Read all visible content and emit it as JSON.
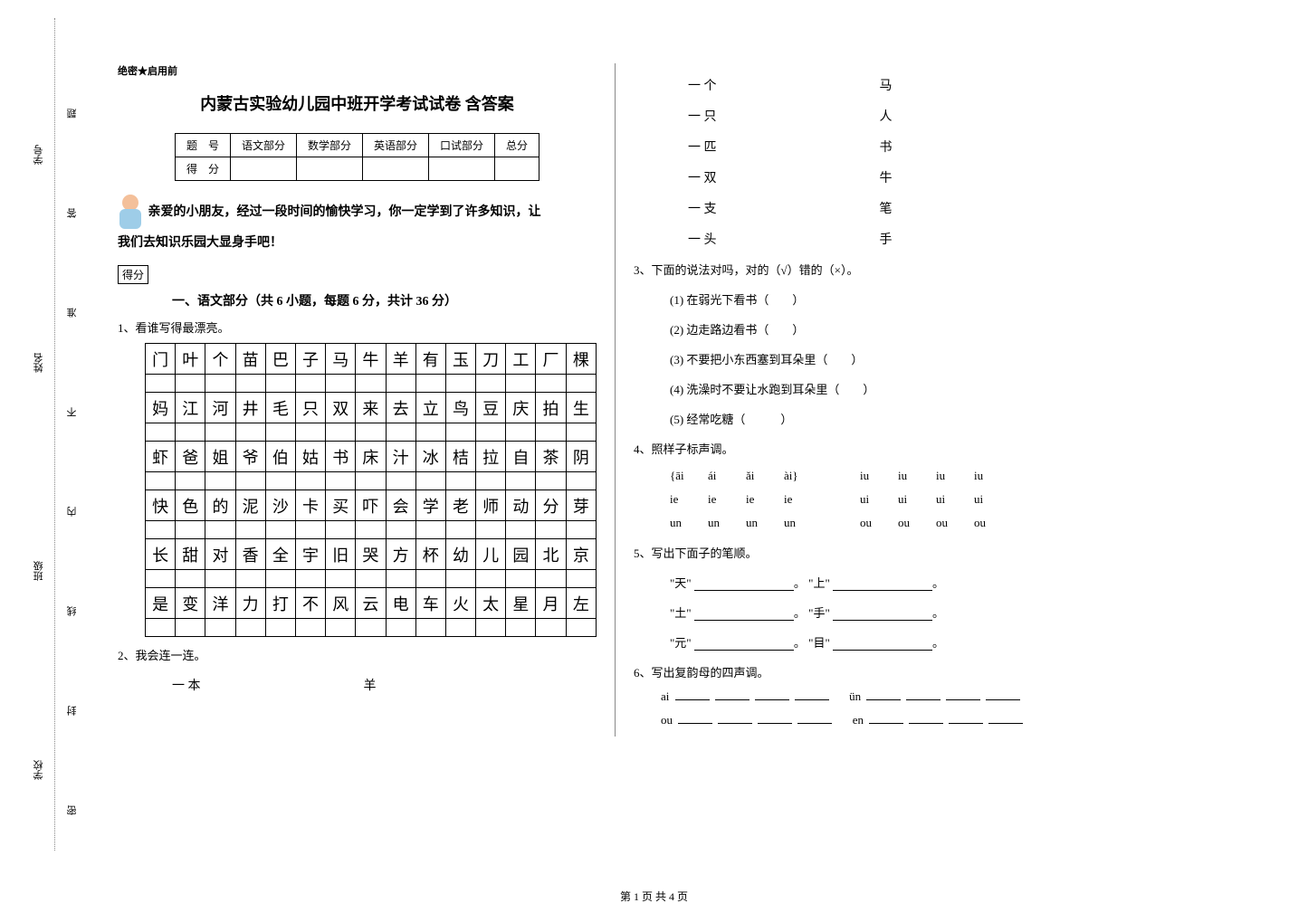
{
  "binding": {
    "labels": [
      "学校",
      "班级",
      "姓名",
      "学号"
    ],
    "notes": [
      "密",
      "封",
      "线",
      "内",
      "不",
      "准",
      "答",
      "题"
    ]
  },
  "classification": "绝密★启用前",
  "title": "内蒙古实验幼儿园中班开学考试试卷 含答案",
  "scoreTable": {
    "headers": [
      "题　号",
      "语文部分",
      "数学部分",
      "英语部分",
      "口试部分",
      "总分"
    ],
    "row2": "得　分"
  },
  "intro": {
    "line1": "亲爱的小朋友，经过一段时间的愉快学习，你一定学到了许多知识，让",
    "line2": "我们去知识乐园大显身手吧！",
    "scoreBox": "得分"
  },
  "section1": {
    "title": "一、语文部分（共 6 小题，每题 6 分，共计 36 分）",
    "q1": {
      "label": "1、看谁写得最漂亮。",
      "rows": [
        [
          "门",
          "叶",
          "个",
          "苗",
          "巴",
          "子",
          "马",
          "牛",
          "羊",
          "有",
          "玉",
          "刀",
          "工",
          "厂",
          "棵"
        ],
        [
          "妈",
          "江",
          "河",
          "井",
          "毛",
          "只",
          "双",
          "来",
          "去",
          "立",
          "鸟",
          "豆",
          "庆",
          "拍",
          "生"
        ],
        [
          "虾",
          "爸",
          "姐",
          "爷",
          "伯",
          "姑",
          "书",
          "床",
          "汁",
          "冰",
          "桔",
          "拉",
          "自",
          "茶",
          "阴"
        ],
        [
          "快",
          "色",
          "的",
          "泥",
          "沙",
          "卡",
          "买",
          "吓",
          "会",
          "学",
          "老",
          "师",
          "动",
          "分",
          "芽"
        ],
        [
          "长",
          "甜",
          "对",
          "香",
          "全",
          "宇",
          "旧",
          "哭",
          "方",
          "杯",
          "幼",
          "儿",
          "园",
          "北",
          "京"
        ],
        [
          "是",
          "变",
          "洋",
          "力",
          "打",
          "不",
          "风",
          "云",
          "电",
          "车",
          "火",
          "太",
          "星",
          "月",
          "左"
        ]
      ]
    },
    "q2": {
      "label": "2、我会连一连。",
      "leftItems": [
        "一 本",
        "一 个",
        "一 只",
        "一 匹",
        "一 双",
        "一 支",
        "一 头"
      ],
      "rightItems": [
        "羊",
        "马",
        "人",
        "书",
        "牛",
        "笔",
        "手"
      ]
    },
    "q3": {
      "label": "3、下面的说法对吗，对的（√）错的（×）。",
      "items": [
        "(1) 在弱光下看书（　　）",
        "(2) 边走路边看书（　　）",
        "(3) 不要把小东西塞到耳朵里（　　）",
        "(4) 洗澡时不要让水跑到耳朵里（　　）",
        "(5) 经常吃糖（　　　）"
      ]
    },
    "q4": {
      "label": "4、照样子标声调。",
      "row1": [
        "{āi",
        "ái",
        "ǎi",
        "ài}",
        "",
        "iu",
        "iu",
        "iu",
        "iu"
      ],
      "row2": [
        "ie",
        "ie",
        "ie",
        "ie",
        "",
        "ui",
        "ui",
        "ui",
        "ui"
      ],
      "row3": [
        "un",
        "un",
        "un",
        "un",
        "",
        "ou",
        "ou",
        "ou",
        "ou"
      ]
    },
    "q5": {
      "label": "5、写出下面子的笔顺。",
      "items": [
        {
          "a": "\"天\"",
          "b": "\"上\""
        },
        {
          "a": "\"土\"",
          "b": "\"手\""
        },
        {
          "a": "\"元\"",
          "b": "\"目\""
        }
      ]
    },
    "q6": {
      "label": "6、写出复韵母的四声调。",
      "rows": [
        {
          "a": "ai",
          "b": "ün"
        },
        {
          "a": "ou",
          "b": "en"
        }
      ]
    }
  },
  "footer": "第 1 页 共 4 页"
}
